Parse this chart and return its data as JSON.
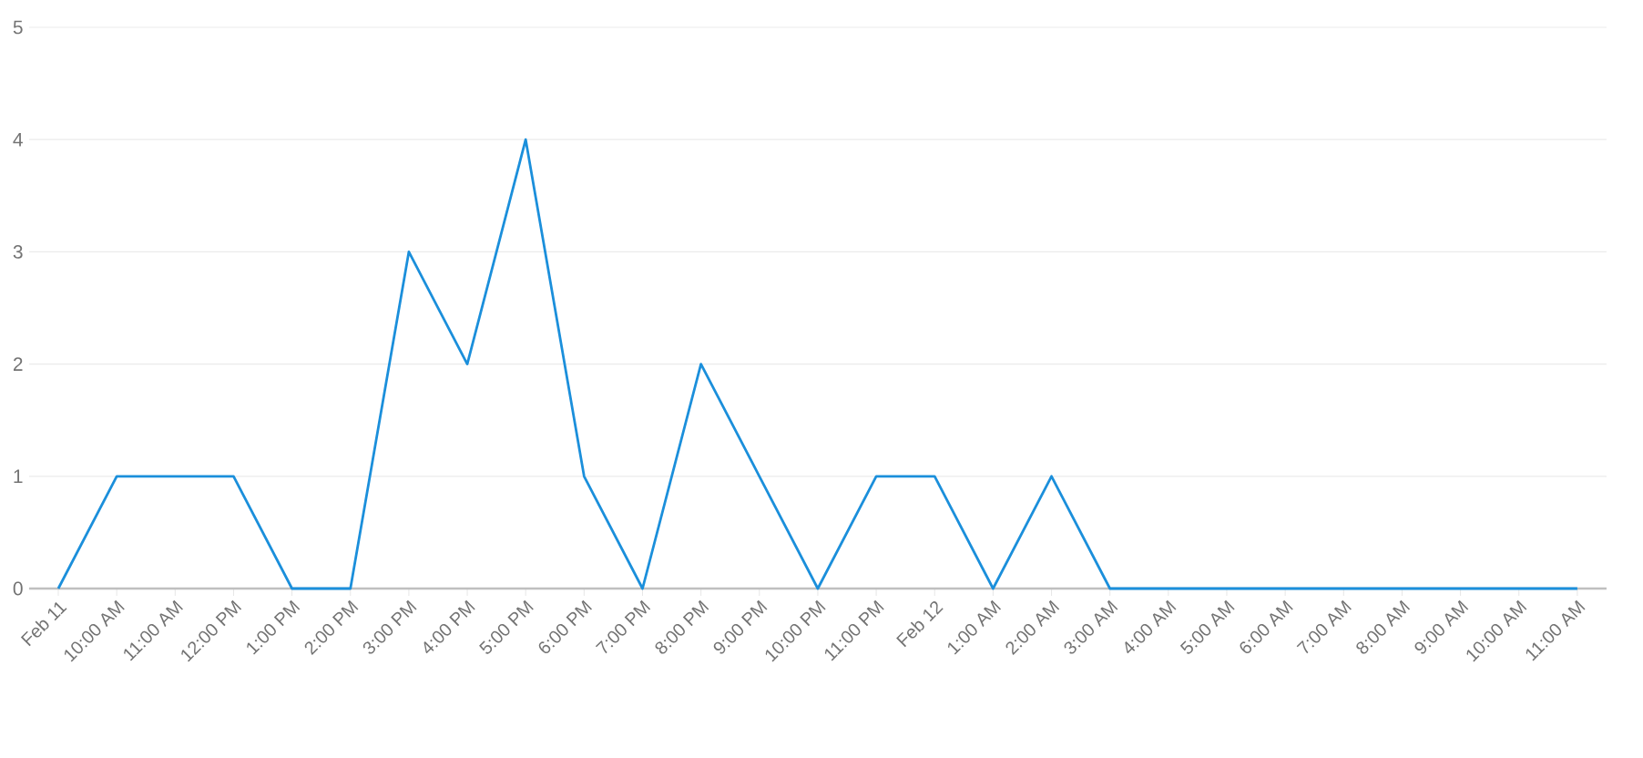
{
  "chart_data": {
    "type": "line",
    "categories": [
      "Feb 11",
      "10:00 AM",
      "11:00 AM",
      "12:00 PM",
      "1:00 PM",
      "2:00 PM",
      "3:00 PM",
      "4:00 PM",
      "5:00 PM",
      "6:00 PM",
      "7:00 PM",
      "8:00 PM",
      "9:00 PM",
      "10:00 PM",
      "11:00 PM",
      "Feb 12",
      "1:00 AM",
      "2:00 AM",
      "3:00 AM",
      "4:00 AM",
      "5:00 AM",
      "6:00 AM",
      "7:00 AM",
      "8:00 AM",
      "9:00 AM",
      "10:00 AM",
      "11:00 AM"
    ],
    "values": [
      0,
      1,
      1,
      1,
      0,
      0,
      3,
      2,
      4,
      1,
      0,
      2,
      1,
      0,
      1,
      1,
      0,
      1,
      0,
      0,
      0,
      0,
      0,
      0,
      0,
      0,
      0
    ],
    "color": "#1b8fdb",
    "ylim": [
      0,
      5
    ],
    "yticks": [
      0,
      1,
      2,
      3,
      4,
      5
    ],
    "grid": "y",
    "marker": "none",
    "line_style": "solid"
  }
}
